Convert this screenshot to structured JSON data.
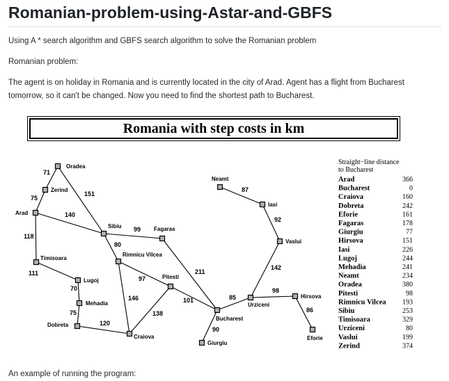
{
  "title": "Romanian-problem-using-Astar-and-GBFS",
  "intro": "Using A * search algorithm and GBFS search algorithm to solve the Romanian problem",
  "section_label": "Romanian problem:",
  "description": "The agent is on holiday in Romania and is currently located in the city of Arad. Agent has a flight from Bucharest tomorrow, so it can't be changed. Now you need to find the shortest path to Bucharest.",
  "figure": {
    "title": "Romania with step costs in km",
    "cities": [
      {
        "name": "Oradea"
      },
      {
        "name": "Zerind"
      },
      {
        "name": "Arad"
      },
      {
        "name": "Sibiu"
      },
      {
        "name": "Fagaras"
      },
      {
        "name": "Timisoara"
      },
      {
        "name": "Rimnicu Vilcea"
      },
      {
        "name": "Lugoj"
      },
      {
        "name": "Mehadia"
      },
      {
        "name": "Dobreta"
      },
      {
        "name": "Craiova"
      },
      {
        "name": "Pitesti"
      },
      {
        "name": "Bucharest"
      },
      {
        "name": "Giurgiu"
      },
      {
        "name": "Urziceni"
      },
      {
        "name": "Neamt"
      },
      {
        "name": "Iasi"
      },
      {
        "name": "Vaslui"
      },
      {
        "name": "Hirsova"
      },
      {
        "name": "Eforie"
      }
    ],
    "roads": [
      {
        "from": "Oradea",
        "to": "Zerind",
        "cost": "71"
      },
      {
        "from": "Zerind",
        "to": "Arad",
        "cost": "75"
      },
      {
        "from": "Oradea",
        "to": "Sibiu",
        "cost": "151"
      },
      {
        "from": "Arad",
        "to": "Sibiu",
        "cost": "140"
      },
      {
        "from": "Arad",
        "to": "Timisoara",
        "cost": "118"
      },
      {
        "from": "Timisoara",
        "to": "Lugoj",
        "cost": "111"
      },
      {
        "from": "Lugoj",
        "to": "Mehadia",
        "cost": "70"
      },
      {
        "from": "Mehadia",
        "to": "Dobreta",
        "cost": "75"
      },
      {
        "from": "Dobreta",
        "to": "Craiova",
        "cost": "120"
      },
      {
        "from": "Sibiu",
        "to": "Fagaras",
        "cost": "99"
      },
      {
        "from": "Sibiu",
        "to": "Rimnicu Vilcea",
        "cost": "80"
      },
      {
        "from": "Rimnicu Vilcea",
        "to": "Pitesti",
        "cost": "97"
      },
      {
        "from": "Rimnicu Vilcea",
        "to": "Craiova",
        "cost": "146"
      },
      {
        "from": "Craiova",
        "to": "Pitesti",
        "cost": "138"
      },
      {
        "from": "Fagaras",
        "to": "Bucharest",
        "cost": "211"
      },
      {
        "from": "Pitesti",
        "to": "Bucharest",
        "cost": "101"
      },
      {
        "from": "Bucharest",
        "to": "Giurgiu",
        "cost": "90"
      },
      {
        "from": "Bucharest",
        "to": "Urziceni",
        "cost": "85"
      },
      {
        "from": "Urziceni",
        "to": "Hirsova",
        "cost": "98"
      },
      {
        "from": "Hirsova",
        "to": "Eforie",
        "cost": "86"
      },
      {
        "from": "Urziceni",
        "to": "Vaslui",
        "cost": "142"
      },
      {
        "from": "Vaslui",
        "to": "Iasi",
        "cost": "92"
      },
      {
        "from": "Iasi",
        "to": "Neamt",
        "cost": "87"
      }
    ],
    "table": {
      "title_line1": "Straight−line distance",
      "title_line2": "to Bucharest",
      "rows": [
        {
          "city": "Arad",
          "value": "366"
        },
        {
          "city": "Bucharest",
          "value": "0"
        },
        {
          "city": "Craiova",
          "value": "160"
        },
        {
          "city": "Dobreta",
          "value": "242"
        },
        {
          "city": "Eforie",
          "value": "161"
        },
        {
          "city": "Fagaras",
          "value": "178"
        },
        {
          "city": "Giurgiu",
          "value": "77"
        },
        {
          "city": "Hirsova",
          "value": "151"
        },
        {
          "city": "Iasi",
          "value": "226"
        },
        {
          "city": "Lugoj",
          "value": "244"
        },
        {
          "city": "Mehadia",
          "value": "241"
        },
        {
          "city": "Neamt",
          "value": "234"
        },
        {
          "city": "Oradea",
          "value": "380"
        },
        {
          "city": "Pitesti",
          "value": "98"
        },
        {
          "city": "Rimnicu Vilcea",
          "value": "193"
        },
        {
          "city": "Sibiu",
          "value": "253"
        },
        {
          "city": "Timisoara",
          "value": "329"
        },
        {
          "city": "Urziceni",
          "value": "80"
        },
        {
          "city": "Vaslui",
          "value": "199"
        },
        {
          "city": "Zerind",
          "value": "374"
        }
      ]
    }
  },
  "next_line": "An example of running the program:"
}
